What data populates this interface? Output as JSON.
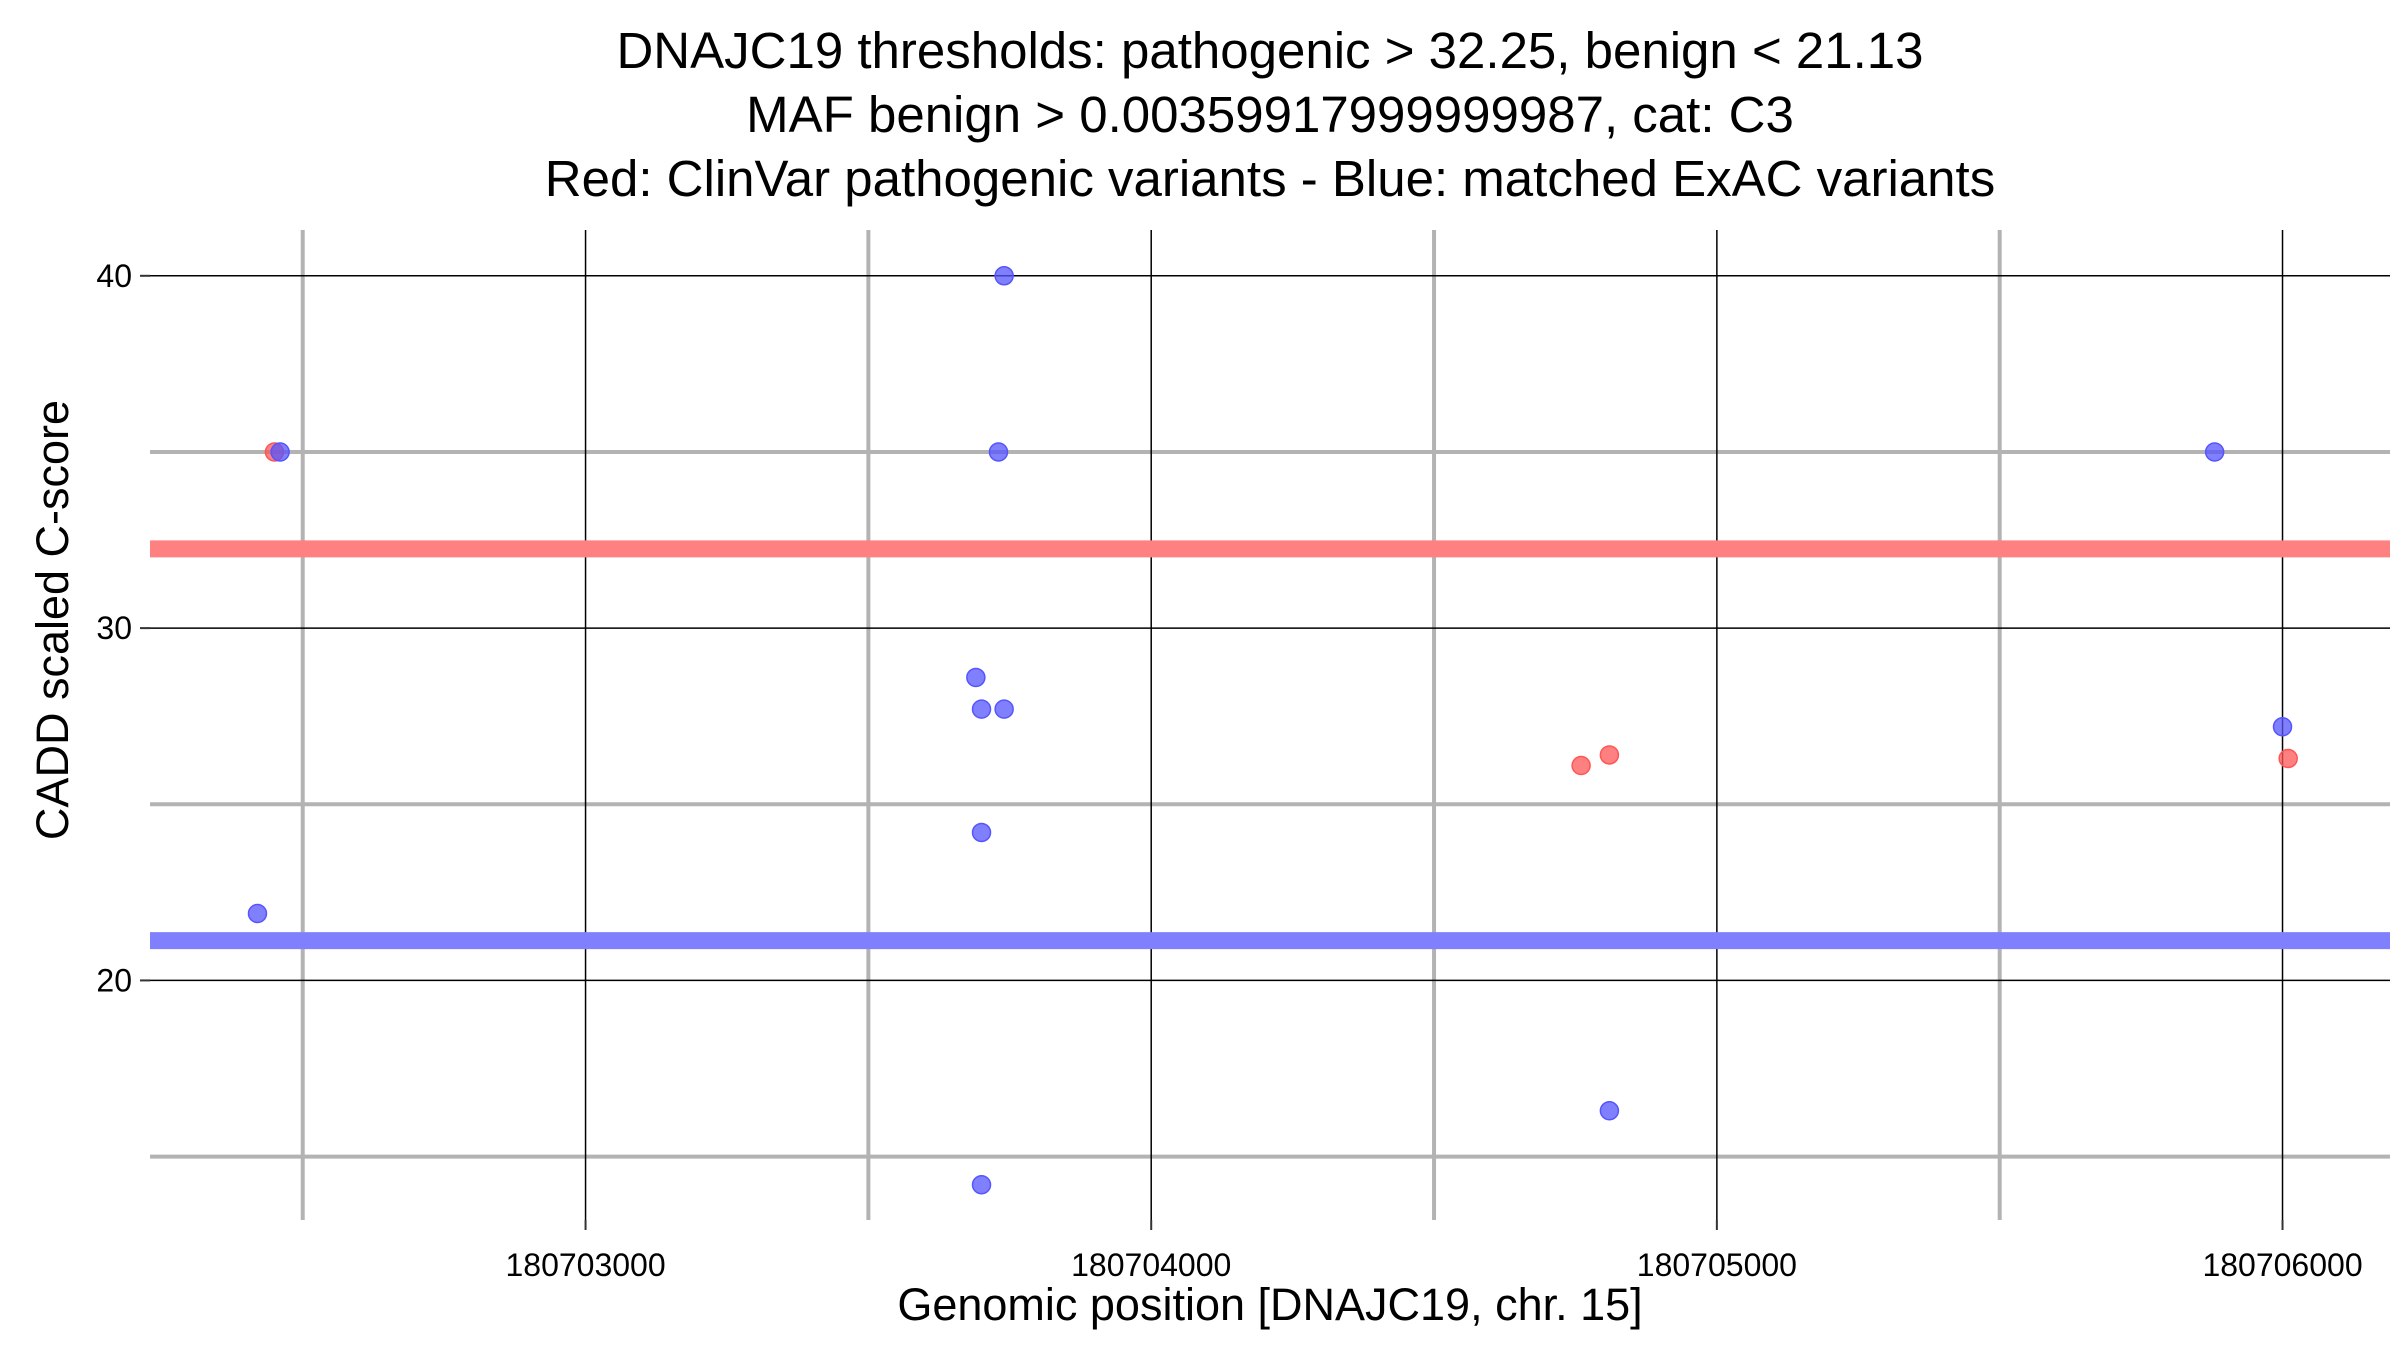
{
  "chart_data": {
    "type": "scatter",
    "title_lines": [
      "DNAJC19 thresholds: pathogenic > 32.25, benign < 21.13",
      "MAF benign > 0.00359917999999987, cat: C3",
      "Red: ClinVar pathogenic variants - Blue: matched ExAC variants"
    ],
    "xlabel": "Genomic position [DNAJC19, chr. 15]",
    "ylabel": "CADD scaled C-score",
    "xlim": [
      180702230,
      180706190
    ],
    "ylim": [
      13.2,
      41.3
    ],
    "x_ticks": [
      180703000,
      180704000,
      180705000,
      180706000
    ],
    "x_tick_labels": [
      "180703000",
      "180704000",
      "180705000",
      "180706000"
    ],
    "x_minor_grid": [
      180702500,
      180703500,
      180704500,
      180705500
    ],
    "y_ticks": [
      20,
      30,
      40
    ],
    "y_tick_labels": [
      "20",
      "30",
      "40"
    ],
    "y_minor_grid": [
      15,
      25,
      35
    ],
    "grid": true,
    "thresholds": [
      {
        "name": "pathogenic",
        "value": 32.25,
        "color": "#ff8080"
      },
      {
        "name": "benign",
        "value": 21.13,
        "color": "#8080ff"
      }
    ],
    "series": [
      {
        "color": "#ff5555",
        "points": [
          {
            "x": 180702450,
            "y": 35.0
          },
          {
            "x": 180704760,
            "y": 26.1
          },
          {
            "x": 180704810,
            "y": 26.4
          },
          {
            "x": 180706010,
            "y": 26.3
          }
        ]
      },
      {
        "color": "#5555ff",
        "points": [
          {
            "x": 180702420,
            "y": 21.9
          },
          {
            "x": 180702460,
            "y": 35.0
          },
          {
            "x": 180703740,
            "y": 40.0
          },
          {
            "x": 180703730,
            "y": 35.0
          },
          {
            "x": 180703690,
            "y": 28.6
          },
          {
            "x": 180703700,
            "y": 27.7
          },
          {
            "x": 180703740,
            "y": 27.7
          },
          {
            "x": 180703700,
            "y": 24.2
          },
          {
            "x": 180704810,
            "y": 16.3
          },
          {
            "x": 180703700,
            "y": 14.2
          },
          {
            "x": 180705880,
            "y": 35.0
          },
          {
            "x": 180706000,
            "y": 27.2
          }
        ]
      }
    ]
  }
}
